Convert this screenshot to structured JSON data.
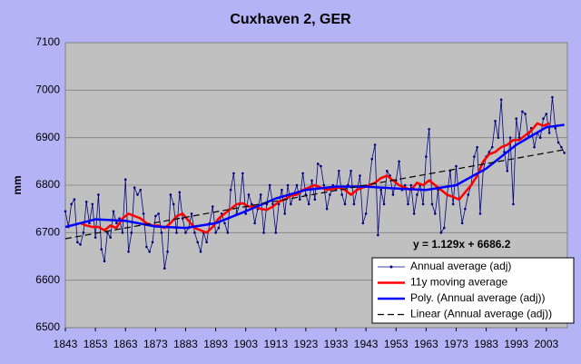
{
  "chart_data": {
    "type": "line",
    "title": "Cuxhaven 2, GER",
    "y_label": "mm",
    "annotation": "y = 1.129x + 6686.2",
    "xlim": [
      1843,
      2010
    ],
    "ylim": [
      6500,
      7100
    ],
    "xticks": [
      1843,
      1853,
      1863,
      1873,
      1883,
      1893,
      1903,
      1913,
      1923,
      1933,
      1943,
      1953,
      1963,
      1973,
      1983,
      1993,
      2003
    ],
    "yticks": [
      6500,
      6600,
      6700,
      6800,
      6900,
      7000,
      7100
    ],
    "grid": true,
    "legend": "lower right",
    "x": [
      1843,
      1844,
      1845,
      1846,
      1847,
      1848,
      1849,
      1850,
      1851,
      1852,
      1853,
      1854,
      1855,
      1856,
      1857,
      1858,
      1859,
      1860,
      1861,
      1862,
      1863,
      1864,
      1865,
      1866,
      1867,
      1868,
      1869,
      1870,
      1871,
      1872,
      1873,
      1874,
      1875,
      1876,
      1877,
      1878,
      1879,
      1880,
      1881,
      1882,
      1883,
      1884,
      1885,
      1886,
      1887,
      1888,
      1889,
      1890,
      1891,
      1892,
      1893,
      1894,
      1895,
      1896,
      1897,
      1898,
      1899,
      1900,
      1901,
      1902,
      1903,
      1904,
      1905,
      1906,
      1907,
      1908,
      1909,
      1910,
      1911,
      1912,
      1913,
      1914,
      1915,
      1916,
      1917,
      1918,
      1919,
      1920,
      1921,
      1922,
      1923,
      1924,
      1925,
      1926,
      1927,
      1928,
      1929,
      1930,
      1931,
      1932,
      1933,
      1934,
      1935,
      1936,
      1937,
      1938,
      1939,
      1940,
      1941,
      1942,
      1943,
      1944,
      1945,
      1946,
      1947,
      1948,
      1949,
      1950,
      1951,
      1952,
      1953,
      1954,
      1955,
      1956,
      1957,
      1958,
      1959,
      1960,
      1961,
      1962,
      1963,
      1964,
      1965,
      1966,
      1967,
      1968,
      1969,
      1970,
      1971,
      1972,
      1973,
      1974,
      1975,
      1976,
      1977,
      1978,
      1979,
      1980,
      1981,
      1982,
      1983,
      1984,
      1985,
      1986,
      1987,
      1988,
      1989,
      1990,
      1991,
      1992,
      1993,
      1994,
      1995,
      1996,
      1997,
      1998,
      1999,
      2000,
      2001,
      2002,
      2003,
      2004,
      2005,
      2006,
      2007,
      2008,
      2009
    ],
    "series": [
      {
        "name": "Annual average (adj)",
        "color": "#000080",
        "markers": true,
        "values": [
          6745,
          6712,
          6760,
          6770,
          6680,
          6675,
          6700,
          6765,
          6720,
          6760,
          6690,
          6780,
          6665,
          6640,
          6700,
          6690,
          6745,
          6720,
          6730,
          6700,
          6812,
          6660,
          6700,
          6795,
          6780,
          6790,
          6740,
          6670,
          6660,
          6680,
          6735,
          6740,
          6700,
          6625,
          6660,
          6780,
          6760,
          6700,
          6785,
          6730,
          6700,
          6710,
          6740,
          6700,
          6680,
          6660,
          6700,
          6680,
          6720,
          6755,
          6700,
          6710,
          6740,
          6720,
          6700,
          6790,
          6825,
          6740,
          6760,
          6825,
          6740,
          6780,
          6760,
          6720,
          6750,
          6780,
          6700,
          6760,
          6800,
          6760,
          6700,
          6760,
          6790,
          6740,
          6800,
          6760,
          6780,
          6800,
          6770,
          6825,
          6780,
          6760,
          6810,
          6770,
          6845,
          6840,
          6800,
          6750,
          6780,
          6800,
          6790,
          6830,
          6780,
          6760,
          6800,
          6830,
          6760,
          6790,
          6820,
          6720,
          6740,
          6800,
          6855,
          6885,
          6695,
          6790,
          6760,
          6830,
          6820,
          6780,
          6810,
          6850,
          6790,
          6800,
          6760,
          6800,
          6740,
          6780,
          6800,
          6760,
          6860,
          6918,
          6760,
          6740,
          6790,
          6700,
          6710,
          6780,
          6830,
          6760,
          6840,
          6770,
          6720,
          6750,
          6780,
          6800,
          6860,
          6880,
          6740,
          6830,
          6860,
          6870,
          6880,
          6935,
          6900,
          6980,
          6870,
          6830,
          6900,
          6760,
          6940,
          6900,
          6955,
          6950,
          6900,
          6920,
          6880,
          6910,
          6900,
          6940,
          6950,
          6910,
          6985,
          6920,
          6890,
          6880,
          6868
        ]
      },
      {
        "name": "11y moving average",
        "color": "#ff0000",
        "width": 2.5,
        "x": [
          1848,
          1850,
          1852,
          1854,
          1856,
          1858,
          1860,
          1862,
          1864,
          1866,
          1868,
          1870,
          1872,
          1874,
          1876,
          1878,
          1880,
          1882,
          1884,
          1886,
          1888,
          1890,
          1892,
          1894,
          1896,
          1898,
          1900,
          1902,
          1904,
          1906,
          1908,
          1910,
          1912,
          1914,
          1916,
          1918,
          1920,
          1922,
          1924,
          1926,
          1928,
          1930,
          1932,
          1934,
          1936,
          1938,
          1940,
          1942,
          1944,
          1946,
          1948,
          1950,
          1952,
          1954,
          1956,
          1958,
          1960,
          1962,
          1964,
          1966,
          1968,
          1970,
          1972,
          1974,
          1976,
          1978,
          1980,
          1982,
          1984,
          1986,
          1988,
          1990,
          1992,
          1994,
          1996,
          1998,
          2000,
          2002,
          2004
        ],
        "values": [
          6720,
          6715,
          6712,
          6712,
          6705,
          6715,
          6710,
          6730,
          6740,
          6735,
          6730,
          6720,
          6715,
          6715,
          6710,
          6720,
          6735,
          6740,
          6725,
          6710,
          6705,
          6700,
          6712,
          6730,
          6740,
          6750,
          6760,
          6762,
          6755,
          6755,
          6750,
          6748,
          6755,
          6765,
          6770,
          6778,
          6780,
          6790,
          6795,
          6800,
          6795,
          6790,
          6792,
          6795,
          6790,
          6780,
          6790,
          6795,
          6800,
          6805,
          6815,
          6820,
          6810,
          6800,
          6795,
          6790,
          6805,
          6800,
          6810,
          6800,
          6790,
          6780,
          6775,
          6770,
          6785,
          6800,
          6820,
          6850,
          6865,
          6870,
          6880,
          6885,
          6895,
          6895,
          6905,
          6915,
          6930,
          6925,
          6930
        ]
      },
      {
        "name": "Poly. (Annual average (adj))",
        "color": "#0000ff",
        "width": 2.5,
        "x": [
          1843,
          1853,
          1863,
          1873,
          1883,
          1893,
          1903,
          1913,
          1923,
          1933,
          1943,
          1953,
          1963,
          1973,
          1983,
          1993,
          2003,
          2009
        ],
        "values": [
          6712,
          6728,
          6725,
          6713,
          6710,
          6720,
          6745,
          6772,
          6790,
          6797,
          6797,
          6793,
          6790,
          6800,
          6835,
          6885,
          6922,
          6927
        ]
      },
      {
        "name": "Linear (Annual average (adj))",
        "color": "#000000",
        "width": 1.2,
        "dash": true,
        "x": [
          1843,
          2009
        ],
        "values": [
          6687.3,
          6874.7
        ]
      }
    ]
  }
}
